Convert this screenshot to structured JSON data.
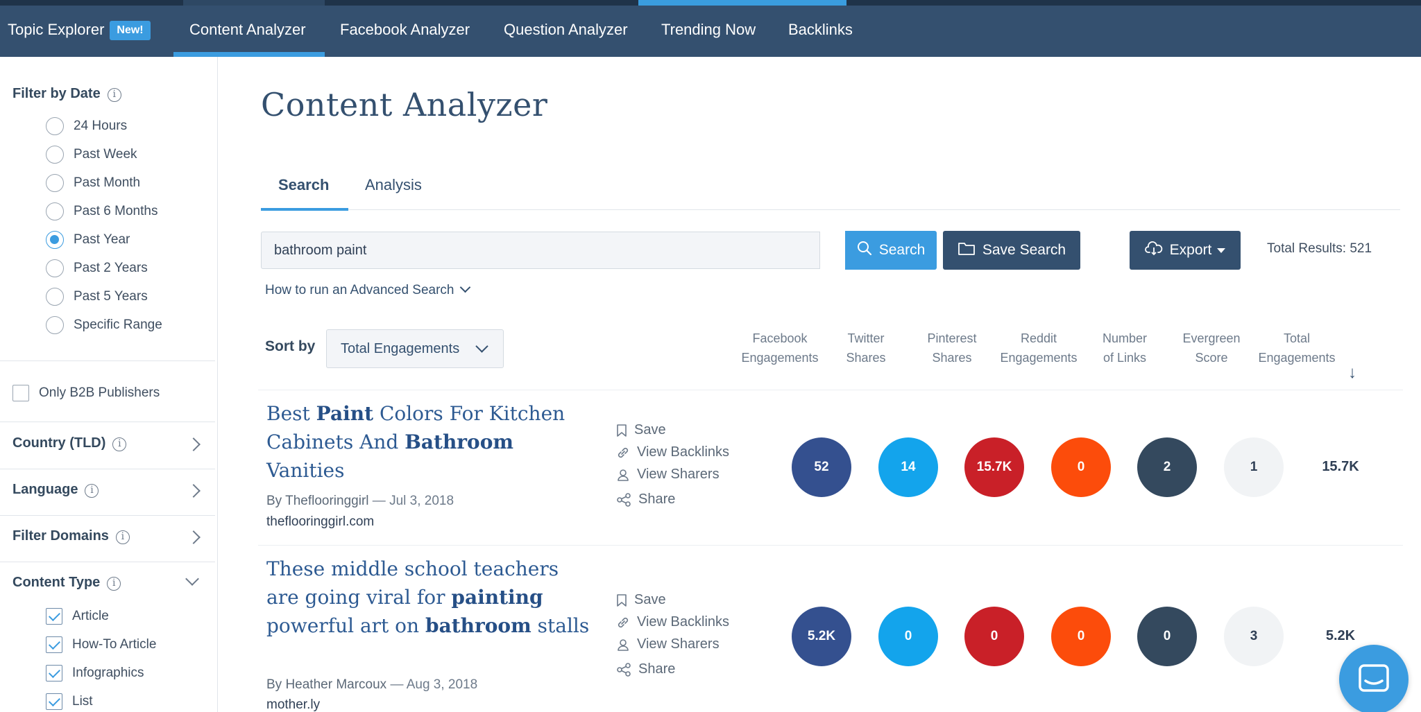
{
  "nav": {
    "items": [
      {
        "label": "Topic Explorer",
        "badge": "New!"
      },
      {
        "label": "Content Analyzer"
      },
      {
        "label": "Facebook Analyzer"
      },
      {
        "label": "Question Analyzer"
      },
      {
        "label": "Trending Now"
      },
      {
        "label": "Backlinks"
      }
    ],
    "active": "Content Analyzer"
  },
  "sidebar": {
    "filter_by_date": {
      "title": "Filter by Date",
      "options": [
        "24 Hours",
        "Past Week",
        "Past Month",
        "Past 6 Months",
        "Past Year",
        "Past 2 Years",
        "Past 5 Years",
        "Specific Range"
      ],
      "selected": "Past Year"
    },
    "b2b": {
      "label": "Only B2B Publishers",
      "checked": false
    },
    "sections": [
      "Country (TLD)",
      "Language",
      "Filter Domains"
    ],
    "content_type": {
      "title": "Content Type",
      "options": [
        {
          "label": "Article",
          "checked": true
        },
        {
          "label": "How-To Article",
          "checked": true
        },
        {
          "label": "Infographics",
          "checked": true
        },
        {
          "label": "List",
          "checked": true
        }
      ]
    }
  },
  "main": {
    "title": "Content Analyzer",
    "tabs": [
      {
        "label": "Search"
      },
      {
        "label": "Analysis"
      }
    ],
    "active_tab": "Search",
    "search": {
      "value": "bathroom paint",
      "button_label": "Search"
    },
    "save_search_label": "Save Search",
    "export_label": "Export",
    "total_results": "Total Results: 521",
    "advanced_link": "How to run an Advanced Search",
    "sort": {
      "label": "Sort by",
      "value": "Total Engagements"
    },
    "columns": [
      {
        "line1": "Facebook",
        "line2": "Engagements"
      },
      {
        "line1": "Twitter",
        "line2": "Shares"
      },
      {
        "line1": "Pinterest",
        "line2": "Shares"
      },
      {
        "line1": "Reddit",
        "line2": "Engagements"
      },
      {
        "line1": "Number",
        "line2": "of Links"
      },
      {
        "line1": "Evergreen",
        "line2": "Score"
      },
      {
        "line1": "Total",
        "line2": "Engagements"
      }
    ],
    "sort_arrow": "↓",
    "actions": [
      "Save",
      "View Backlinks",
      "View Sharers",
      "Share"
    ],
    "results": [
      {
        "title_parts": [
          {
            "text": "Best ",
            "bold": false
          },
          {
            "text": "Paint",
            "bold": true
          },
          {
            "text": " Colors For Kitchen Cabinets And ",
            "bold": false
          },
          {
            "text": "Bathroom",
            "bold": true
          },
          {
            "text": " Vanities",
            "bold": false
          }
        ],
        "author": "By Theflooringgirl",
        "date": "— Jul 3, 2018",
        "domain": "theflooringgirl.com",
        "metrics": {
          "facebook": "52",
          "twitter": "14",
          "pinterest": "15.7K",
          "reddit": "0",
          "links": "2",
          "evergreen": "1"
        },
        "total": "15.7K"
      },
      {
        "title_parts": [
          {
            "text": "These middle school teachers are going viral for ",
            "bold": false
          },
          {
            "text": "painting",
            "bold": true
          },
          {
            "text": " powerful art on ",
            "bold": false
          },
          {
            "text": "bathroom",
            "bold": true
          },
          {
            "text": " stalls",
            "bold": false
          }
        ],
        "author": "By Heather Marcoux",
        "date": "— Aug 3, 2018",
        "domain": "mother.ly",
        "metrics": {
          "facebook": "5.2K",
          "twitter": "0",
          "pinterest": "0",
          "reddit": "0",
          "links": "0",
          "evergreen": "3"
        },
        "total": "5.2K"
      }
    ]
  },
  "colors": {
    "nav_bg": "#34506f",
    "accent": "#3b9ce0",
    "facebook": "#34508f",
    "twitter": "#13a4ec",
    "pinterest": "#c92028",
    "reddit": "#fc4c0b",
    "links": "#34495e",
    "evergreen": "#f1f3f5"
  },
  "icons": {
    "search": "search-icon",
    "folder": "folder-icon",
    "export": "cloud-download-icon",
    "save": "bookmark-icon",
    "backlinks": "link-icon",
    "sharers": "user-icon",
    "share": "share-icon",
    "chat": "chat-icon"
  }
}
